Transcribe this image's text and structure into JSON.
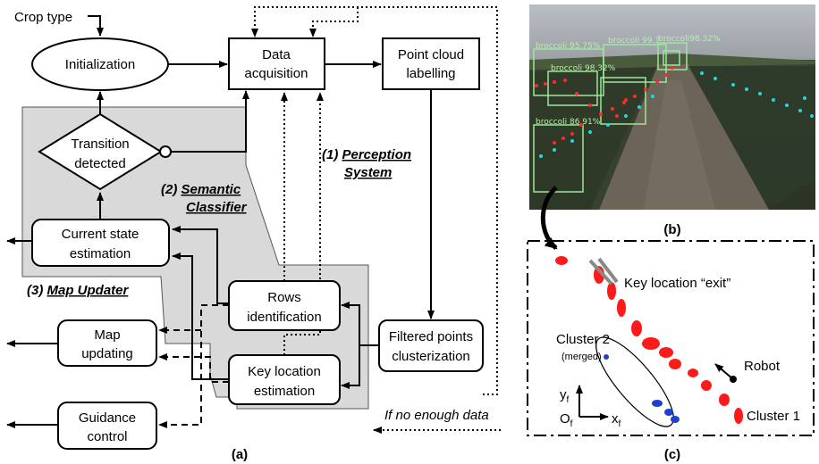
{
  "panel_a": {
    "crop_type": "Crop type",
    "initialization": "Initialization",
    "data_acquisition": [
      "Data",
      "acquisition"
    ],
    "point_cloud_labelling": [
      "Point cloud",
      "labelling"
    ],
    "transition_detected": [
      "Transition",
      "detected"
    ],
    "perception_system": [
      "(1) ",
      "Perception",
      "System"
    ],
    "semantic_classifier": [
      "(2) ",
      "Semantic",
      "Classifier"
    ],
    "map_updater": [
      "(3) ",
      "Map Updater"
    ],
    "current_state_estimation": [
      "Current state",
      "estimation"
    ],
    "rows_identification": [
      "Rows",
      "identification"
    ],
    "key_location_estimation": [
      "Key location",
      "estimation"
    ],
    "filtered_points_clusterization": [
      "Filtered points",
      "clusterization"
    ],
    "map_updating": [
      "Map",
      "updating"
    ],
    "guidance_control": [
      "Guidance",
      "control"
    ],
    "no_enough_data": "If no enough data",
    "caption": "(a)"
  },
  "panel_b": {
    "detections": [
      "broccoli 95.75%",
      "broccoli 99.7",
      "broccoli98.32%",
      "broccoli 98.32%",
      "broccoli 86.91%"
    ],
    "caption": "(b)"
  },
  "panel_c": {
    "key_location_exit": "Key location “exit”",
    "cluster_2": "Cluster 2",
    "merged": "(merged)",
    "robot": "Robot",
    "cluster_1": "Cluster 1",
    "axis_y": [
      "y",
      "f"
    ],
    "axis_x": [
      "x",
      "f"
    ],
    "origin": [
      "O",
      "f"
    ],
    "caption": "(c)"
  },
  "colors": {
    "gray_region": "#d9d9d9",
    "cluster_red": "#ff0000",
    "cluster_blue": "#1f3fd0",
    "point_cyan": "#27d6e0",
    "detection_green": "#9be89a"
  }
}
